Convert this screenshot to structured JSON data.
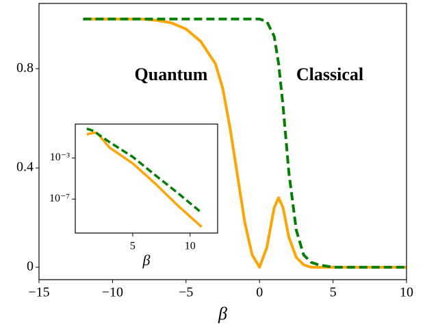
{
  "chart_data": [
    {
      "type": "line",
      "xlabel": "β",
      "x": [
        -12,
        -8,
        -7,
        -6,
        -5,
        -4,
        -3,
        -2.5,
        -2,
        -1.5,
        -1,
        -0.5,
        0,
        0.5,
        1,
        1.3,
        1.6,
        2,
        2.5,
        3,
        3.5,
        4,
        5,
        10
      ],
      "series": [
        {
          "name": "Quantum",
          "color": "#ffa500",
          "linestyle": "solid",
          "values": [
            1,
            1,
            0.995,
            0.985,
            0.96,
            0.91,
            0.82,
            0.72,
            0.56,
            0.37,
            0.18,
            0.05,
            0,
            0.08,
            0.24,
            0.28,
            0.24,
            0.12,
            0.04,
            0.01,
            0,
            0,
            0,
            0
          ]
        },
        {
          "name": "Classical",
          "color": "#007f00",
          "linestyle": "dashed",
          "values": [
            1,
            1,
            1,
            1,
            1,
            1,
            1,
            1,
            1,
            1,
            1,
            1,
            1,
            0.99,
            0.93,
            0.82,
            0.65,
            0.38,
            0.15,
            0.05,
            0.02,
            0.01,
            0,
            0
          ]
        }
      ],
      "annotations": [
        {
          "text": "Quantum",
          "color": "#e69500"
        },
        {
          "text": "Classical",
          "color": "#007f00"
        }
      ],
      "xlim": [
        -15,
        10
      ],
      "xticks": [
        {
          "value": -15,
          "label": "−15"
        },
        {
          "value": -10,
          "label": "−10"
        },
        {
          "value": -5,
          "label": "−5"
        },
        0,
        5,
        10
      ],
      "ylim": [
        -0.05,
        1.063
      ],
      "yticks": [
        0,
        0.4,
        0.8
      ],
      "log_y": false
    },
    {
      "type": "line",
      "xlabel": "β",
      "x": [
        1,
        1.7,
        2,
        3,
        5,
        7,
        9,
        11
      ],
      "series": [
        {
          "name": "Quantum",
          "color": "#ffa500",
          "linestyle": "solid",
          "values": [
            0.2,
            0.3,
            0.2,
            0.01,
            0.0003,
            3e-06,
            2e-08,
            2e-10
          ]
        },
        {
          "name": "Classical",
          "color": "#007f00",
          "linestyle": "dashed",
          "values": [
            0.7,
            0.4,
            0.2,
            0.034,
            0.0013,
            2e-05,
            3.4e-07,
            4.7e-09
          ]
        }
      ],
      "xlim": [
        0,
        12.4
      ],
      "xticks": [
        5,
        10
      ],
      "ylim": [
        5e-11,
        2
      ],
      "yticks": [
        {
          "value": 0.001,
          "label": "10⁻³"
        },
        {
          "value": 1e-07,
          "label": "10⁻⁷"
        }
      ],
      "log_y": true
    }
  ]
}
